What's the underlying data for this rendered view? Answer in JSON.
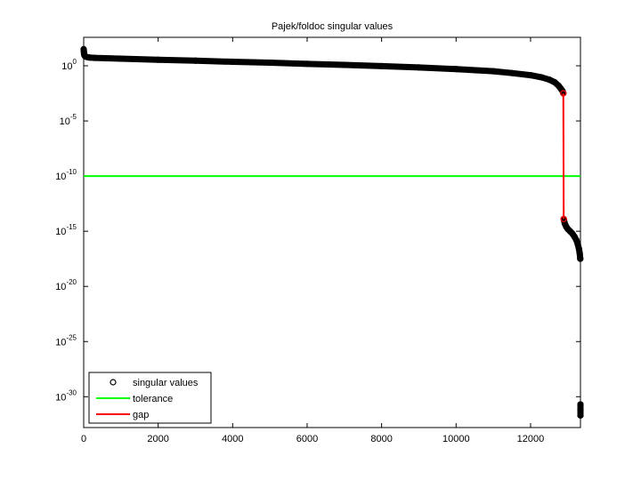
{
  "chart_data": {
    "type": "scatter",
    "title": "Pajek/foldoc singular values",
    "log_y": true,
    "legend": "lower left",
    "xlim": [
      0,
      13340
    ],
    "xticks": [
      0,
      2000,
      4000,
      6000,
      8000,
      10000,
      12000
    ],
    "ylim": [
      1.6e-33,
      380
    ],
    "yticks": [
      {
        "value": 1e-30,
        "label": "10^-30"
      },
      {
        "value": 1e-25,
        "label": "10^-25"
      },
      {
        "value": 1e-20,
        "label": "10^-20"
      },
      {
        "value": 1e-15,
        "label": "10^-15"
      },
      {
        "value": 1e-10,
        "label": "10^-10"
      },
      {
        "value": 1e-05,
        "label": "10^-5"
      },
      {
        "value": 1,
        "label": "10^0"
      }
    ],
    "series": [
      {
        "name": "singular values",
        "color": "#000000",
        "x": [
          0,
          5,
          10,
          20,
          40,
          80,
          150,
          300,
          600,
          1000,
          2000,
          3000,
          4000,
          5000,
          6000,
          7000,
          8000,
          9000,
          10000,
          11000,
          11500,
          12000,
          12300,
          12500,
          12650,
          12750,
          12820,
          12860,
          12880,
          12890,
          12920,
          12960,
          13000,
          13060,
          13120,
          13180,
          13230,
          13270,
          13300,
          13320,
          13335,
          13340,
          13340,
          13340
        ],
        "values": [
          31.6,
          20,
          12.6,
          8.9,
          7.1,
          6.3,
          5.6,
          5.2,
          4.8,
          4.4,
          3.5,
          2.9,
          2.3,
          1.9,
          1.5,
          1.2,
          0.93,
          0.71,
          0.5,
          0.32,
          0.22,
          0.14,
          0.089,
          0.056,
          0.032,
          0.016,
          0.0079,
          0.005,
          0.0032,
          1.3e-14,
          5e-15,
          2.5e-15,
          1.6e-15,
          1e-15,
          6.3e-16,
          3.2e-16,
          1.6e-16,
          6.3e-17,
          2.5e-17,
          1e-17,
          3.2e-18,
          2e-31,
          6.3e-32,
          2e-32
        ]
      },
      {
        "name": "tolerance",
        "color": "#00ff00",
        "value": 1e-10
      },
      {
        "name": "gap",
        "color": "#ff0000",
        "x": [
          12880,
          12890
        ],
        "values": [
          0.0032,
          1.3e-14
        ]
      }
    ]
  }
}
